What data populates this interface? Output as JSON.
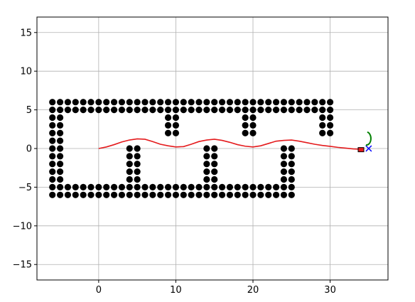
{
  "chart_data": {
    "type": "scatter",
    "xlim": [
      -8,
      37.5
    ],
    "ylim": [
      -17,
      17
    ],
    "grid": true,
    "x_ticks": [
      0,
      10,
      20,
      30
    ],
    "y_ticks": [
      -15,
      -10,
      -5,
      0,
      5,
      10,
      15
    ],
    "x_tick_labels": [
      "0",
      "10",
      "20",
      "30"
    ],
    "y_tick_labels": [
      "−15",
      "−10",
      "−5",
      "0",
      "5",
      "10",
      "15"
    ],
    "obstacles": {
      "color": "#000000",
      "top_row_y": [
        6,
        5
      ],
      "top_row_x_range": [
        -6,
        30
      ],
      "bottom_row_y": [
        -5,
        -6
      ],
      "bottom_row_x_range": [
        -6,
        25
      ],
      "left_wall_x": [
        -6,
        -5
      ],
      "left_wall_y_range": [
        -4,
        4
      ],
      "top_pillars": [
        {
          "x": [
            9,
            10
          ],
          "y_range": [
            2,
            4
          ]
        },
        {
          "x": [
            19,
            20
          ],
          "y_range": [
            2,
            4
          ]
        },
        {
          "x": [
            29,
            30
          ],
          "y_range": [
            2,
            4
          ]
        }
      ],
      "bottom_pillars": [
        {
          "x": [
            4,
            5
          ],
          "y_range": [
            -4,
            0
          ]
        },
        {
          "x": [
            14,
            15
          ],
          "y_range": [
            -4,
            0
          ]
        },
        {
          "x": [
            24,
            25
          ],
          "y_range": [
            -4,
            0
          ]
        }
      ]
    },
    "path": {
      "color": "#e41a1c",
      "x": [
        0,
        1,
        2,
        3,
        4,
        5,
        6,
        7,
        8,
        9,
        10,
        11,
        12,
        13,
        14,
        15,
        16,
        17,
        18,
        19,
        20,
        21,
        22,
        23,
        24,
        25,
        26,
        27,
        28,
        29,
        30,
        31,
        32,
        33,
        34
      ],
      "y": [
        0,
        0.2,
        0.5,
        0.85,
        1.1,
        1.25,
        1.2,
        0.9,
        0.55,
        0.35,
        0.2,
        0.25,
        0.55,
        0.9,
        1.1,
        1.2,
        1.05,
        0.8,
        0.5,
        0.3,
        0.2,
        0.35,
        0.65,
        0.95,
        1.05,
        1.1,
        0.95,
        0.75,
        0.55,
        0.4,
        0.28,
        0.15,
        0.05,
        -0.05,
        -0.1
      ]
    },
    "vehicle": {
      "x": 34,
      "y": -0.15,
      "color": "#e41a1c"
    },
    "goal": {
      "x": 35,
      "y": 0,
      "marker": "x",
      "color": "#0000ff"
    },
    "heading_arc": {
      "x": 35,
      "y": 1.2,
      "color": "#008000"
    }
  }
}
